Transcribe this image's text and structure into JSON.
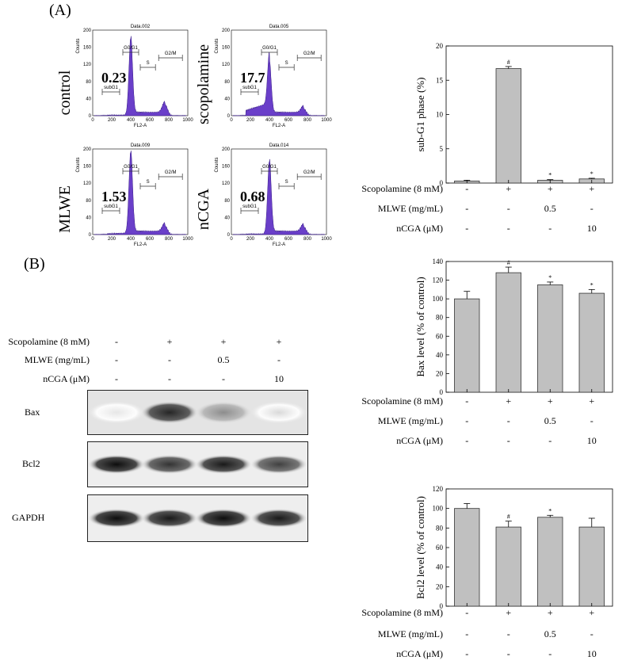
{
  "panel_a": {
    "label": "(A)",
    "histograms": [
      {
        "title": "Data.002",
        "side_label": "control",
        "subg1_value": "0.23",
        "side": "left",
        "g0g1_label": "G0/G1",
        "s_label": "S",
        "g2m_label": "G2/M",
        "subg1_label": "subG1",
        "ylabel": "Counts",
        "xlabel": "FL2-A",
        "yticks": [
          "0",
          "40",
          "80",
          "120",
          "160",
          "200"
        ],
        "xticks": [
          "0",
          "200",
          "400",
          "600",
          "800",
          "1000"
        ],
        "peaks": {
          "g1_height": 0.9,
          "g2_height": 0.13,
          "subg1": 0.01
        }
      },
      {
        "title": "Data.005",
        "side_label": "scopolamine",
        "subg1_value": "17.7",
        "side": "left",
        "g0g1_label": "G0/G1",
        "s_label": "S",
        "g2m_label": "G2/M",
        "subg1_label": "subG1",
        "ylabel": "Counts",
        "xlabel": "FL2-A",
        "yticks": [
          "0",
          "40",
          "80",
          "120",
          "160",
          "200"
        ],
        "xticks": [
          "0",
          "200",
          "400",
          "600",
          "800",
          "1000"
        ],
        "peaks": {
          "g1_height": 0.6,
          "g2_height": 0.08,
          "subg1": 0.15
        }
      },
      {
        "title": "Data.009",
        "side_label": "MLWE",
        "subg1_value": "1.53",
        "side": "left",
        "g0g1_label": "G0/G1",
        "s_label": "S",
        "g2m_label": "G2/M",
        "subg1_label": "subG1",
        "ylabel": "Counts",
        "xlabel": "FL2-A",
        "yticks": [
          "0",
          "40",
          "80",
          "120",
          "160",
          "200"
        ],
        "xticks": [
          "0",
          "200",
          "400",
          "600",
          "800",
          "1000"
        ],
        "peaks": {
          "g1_height": 0.95,
          "g2_height": 0.1,
          "subg1": 0.02
        }
      },
      {
        "title": "Data.014",
        "side_label": "nCGA",
        "subg1_value": "0.68",
        "side": "left",
        "g0g1_label": "G0/G1",
        "s_label": "S",
        "g2m_label": "G2/M",
        "subg1_label": "subG1",
        "ylabel": "Counts",
        "xlabel": "FL2-A",
        "yticks": [
          "0",
          "40",
          "80",
          "120",
          "160",
          "200"
        ],
        "xticks": [
          "0",
          "200",
          "400",
          "600",
          "800",
          "1000"
        ],
        "peaks": {
          "g1_height": 0.85,
          "g2_height": 0.09,
          "subg1": 0.01
        }
      }
    ]
  },
  "panel_b": {
    "label": "(B)",
    "conditions": [
      {
        "name": "Scopolamine (8 mM)",
        "signs": [
          "-",
          "+",
          "+",
          "+"
        ]
      },
      {
        "name": "MLWE (mg/mL)",
        "signs": [
          "-",
          "-",
          "0.5",
          "-"
        ]
      },
      {
        "name": "nCGA (μM)",
        "signs": [
          "-",
          "-",
          "-",
          "10"
        ]
      }
    ],
    "blots": [
      {
        "label": "Bax",
        "intensity": [
          0.1,
          0.85,
          0.45,
          0.15
        ]
      },
      {
        "label": "Bcl2",
        "intensity": [
          0.95,
          0.8,
          0.9,
          0.75
        ]
      },
      {
        "label": "GAPDH",
        "intensity": [
          0.95,
          0.9,
          0.95,
          0.9
        ]
      }
    ]
  },
  "chart_data": [
    {
      "type": "bar",
      "ylabel": "sub-G1 phase (%)",
      "ylim": [
        0,
        20
      ],
      "yticks": [
        0,
        5,
        10,
        15,
        20
      ],
      "categories": [
        "1",
        "2",
        "3",
        "4"
      ],
      "values": [
        0.3,
        16.7,
        0.4,
        0.6
      ],
      "errors": [
        0.1,
        0.3,
        0.1,
        0.1
      ],
      "annotations": [
        "",
        "#",
        "*",
        "*"
      ],
      "conditions": [
        {
          "name": "Scopolamine (8 mM)",
          "signs": [
            "-",
            "+",
            "+",
            "+"
          ]
        },
        {
          "name": "MLWE (mg/mL)",
          "signs": [
            "-",
            "-",
            "0.5",
            "-"
          ]
        },
        {
          "name": "nCGA (μM)",
          "signs": [
            "-",
            "-",
            "-",
            "10"
          ]
        }
      ],
      "grid": false
    },
    {
      "type": "bar",
      "ylabel": "Bax level (% of control)",
      "ylim": [
        0,
        140
      ],
      "yticks": [
        0,
        20,
        40,
        60,
        80,
        100,
        120,
        140
      ],
      "categories": [
        "1",
        "2",
        "3",
        "4"
      ],
      "values": [
        100,
        128,
        115,
        106
      ],
      "errors": [
        8,
        6,
        3,
        4
      ],
      "annotations": [
        "",
        "#",
        "*",
        "*"
      ],
      "conditions": [
        {
          "name": "Scopolamine (8 mM)",
          "signs": [
            "-",
            "+",
            "+",
            "+"
          ]
        },
        {
          "name": "MLWE (mg/mL)",
          "signs": [
            "-",
            "-",
            "0.5",
            "-"
          ]
        },
        {
          "name": "nCGA (μM)",
          "signs": [
            "-",
            "-",
            "-",
            "10"
          ]
        }
      ],
      "grid": false
    },
    {
      "type": "bar",
      "ylabel": "Bcl2 level (% of control)",
      "ylim": [
        0,
        120
      ],
      "yticks": [
        0,
        20,
        40,
        60,
        80,
        100,
        120
      ],
      "categories": [
        "1",
        "2",
        "3",
        "4"
      ],
      "values": [
        100,
        81,
        91,
        81
      ],
      "errors": [
        5,
        6,
        2,
        9
      ],
      "annotations": [
        "",
        "#",
        "*",
        ""
      ],
      "conditions": [
        {
          "name": "Scopolamine (8 mM)",
          "signs": [
            "-",
            "+",
            "+",
            "+"
          ]
        },
        {
          "name": "MLWE (mg/mL)",
          "signs": [
            "-",
            "-",
            "0.5",
            "-"
          ]
        },
        {
          "name": "nCGA (μM)",
          "signs": [
            "-",
            "-",
            "-",
            "10"
          ]
        }
      ],
      "grid": false
    }
  ]
}
